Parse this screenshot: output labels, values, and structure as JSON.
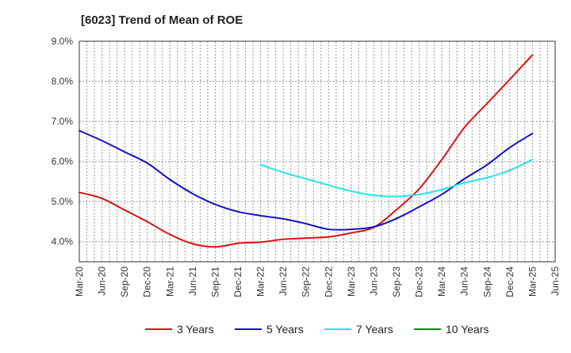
{
  "chart_data": {
    "type": "line",
    "title": "[6023]  Trend of Mean of ROE",
    "xlabel": "",
    "ylabel": "",
    "ylim": [
      3.5,
      9.0
    ],
    "yticks": [
      4.0,
      5.0,
      6.0,
      7.0,
      8.0,
      9.0
    ],
    "ytick_labels": [
      "4.0%",
      "5.0%",
      "6.0%",
      "7.0%",
      "8.0%",
      "9.0%"
    ],
    "x_tick_labels": [
      "Mar-20",
      "Jun-20",
      "Sep-20",
      "Dec-20",
      "Mar-21",
      "Jun-21",
      "Sep-21",
      "Dec-21",
      "Mar-22",
      "Jun-22",
      "Sep-22",
      "Dec-22",
      "Mar-23",
      "Jun-23",
      "Sep-23",
      "Dec-23",
      "Mar-24",
      "Jun-24",
      "Sep-24",
      "Dec-24",
      "Mar-25",
      "Jun-25"
    ],
    "grid": true,
    "legend_position": "bottom",
    "series": [
      {
        "name": "3 Years",
        "color": "#dd1111",
        "x": [
          "Mar-20",
          "Jun-20",
          "Sep-20",
          "Dec-20",
          "Mar-21",
          "Jun-21",
          "Sep-21",
          "Dec-21",
          "Mar-22",
          "Jun-22",
          "Sep-22",
          "Dec-22",
          "Mar-23",
          "Jun-23",
          "Sep-23",
          "Dec-23",
          "Mar-24",
          "Jun-24",
          "Sep-24",
          "Dec-24",
          "Mar-25"
        ],
        "values": [
          5.23,
          5.08,
          4.79,
          4.5,
          4.18,
          3.95,
          3.87,
          3.96,
          3.99,
          4.06,
          4.09,
          4.12,
          4.22,
          4.36,
          4.8,
          5.32,
          6.05,
          6.85,
          7.45,
          8.05,
          8.66
        ]
      },
      {
        "name": "5 Years",
        "color": "#1111cc",
        "x": [
          "Mar-20",
          "Jun-20",
          "Sep-20",
          "Dec-20",
          "Mar-21",
          "Jun-21",
          "Sep-21",
          "Dec-21",
          "Mar-22",
          "Jun-22",
          "Sep-22",
          "Dec-22",
          "Mar-23",
          "Jun-23",
          "Sep-23",
          "Dec-23",
          "Mar-24",
          "Jun-24",
          "Sep-24",
          "Dec-24",
          "Mar-25"
        ],
        "values": [
          6.77,
          6.52,
          6.24,
          5.96,
          5.55,
          5.2,
          4.93,
          4.75,
          4.65,
          4.57,
          4.45,
          4.31,
          4.31,
          4.37,
          4.58,
          4.87,
          5.18,
          5.57,
          5.92,
          6.35,
          6.7
        ]
      },
      {
        "name": "7 Years",
        "color": "#22e5f0",
        "x": [
          "Mar-22",
          "Jun-22",
          "Sep-22",
          "Dec-22",
          "Mar-23",
          "Jun-23",
          "Sep-23",
          "Dec-23",
          "Mar-24",
          "Jun-24",
          "Sep-24",
          "Dec-24",
          "Mar-25"
        ],
        "values": [
          5.92,
          5.73,
          5.57,
          5.41,
          5.26,
          5.16,
          5.13,
          5.18,
          5.3,
          5.47,
          5.6,
          5.78,
          6.05
        ]
      },
      {
        "name": "10 Years",
        "color": "#118811",
        "x": [],
        "values": []
      }
    ]
  }
}
